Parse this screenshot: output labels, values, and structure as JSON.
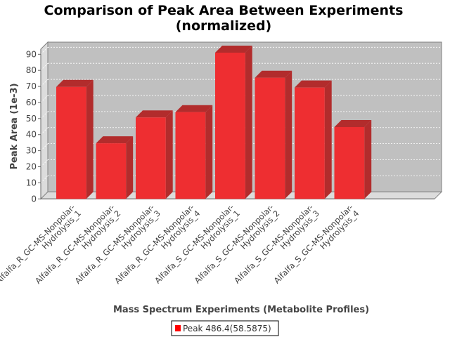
{
  "chart_data": {
    "type": "bar",
    "title": [
      "Comparison of Peak Area Between Experiments",
      "(normalized)"
    ],
    "xlabel": "Mass Spectrum Experiments (Metabolite Profiles)",
    "ylabel": "Peak Area (1e-3)",
    "ylim": [
      0,
      95
    ],
    "yticks": [
      "0",
      "10",
      "20",
      "30",
      "40",
      "50",
      "60",
      "70",
      "80",
      "90"
    ],
    "grid": true,
    "categories": [
      [
        "Alfalfa_R_GC-MS-Nonpolar-",
        "Hydrolysis_1"
      ],
      [
        "Alfalfa_R_GC-MS-Nonpolar-",
        "Hydrolysis_2"
      ],
      [
        "Alfalfa_R_GC-MS-Nonpolar-",
        "Hydrolysis_3"
      ],
      [
        "Alfalfa_R_GC-MS-Nonpolar-",
        "Hydrolysis_4"
      ],
      [
        "Alfalfa_S_GC-MS-Nonpolar-",
        "Hydrolysis_1"
      ],
      [
        "Alfalfa_S_GC-MS-Nonpolar-",
        "Hydrolysis_2"
      ],
      [
        "Alfalfa_S_GC-MS-Nonpolar-",
        "Hydrolysis_3"
      ],
      [
        "Alfalfa_S_GC-MS-Nonpolar-",
        "Hydrolysis_4"
      ]
    ],
    "series": [
      {
        "name": "Peak 486.4(58.5875)",
        "color": "#ff0000",
        "values": [
          69.7,
          34.6,
          50.7,
          54.0,
          91.0,
          75.4,
          69.3,
          44.7
        ]
      }
    ],
    "legend": "bottom-center"
  }
}
